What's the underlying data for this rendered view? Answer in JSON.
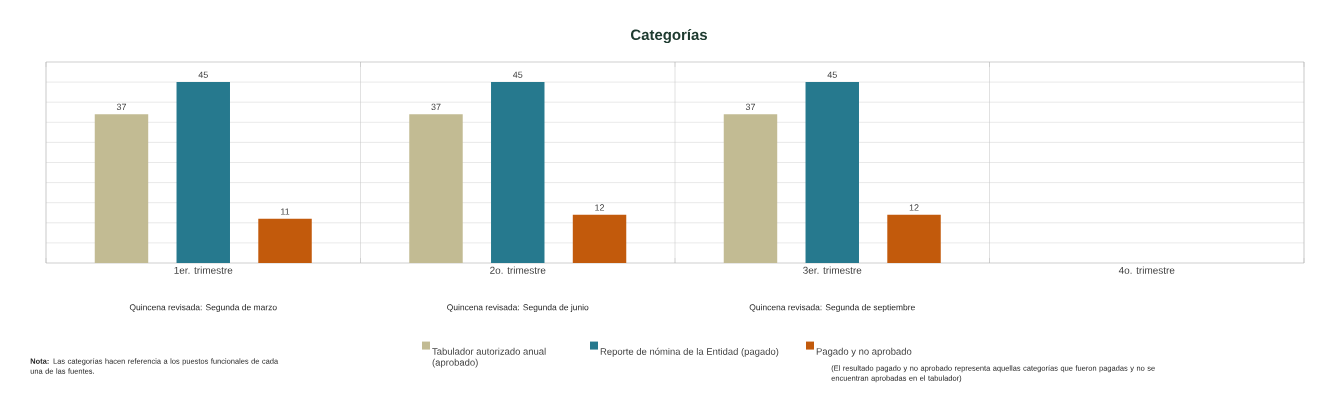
{
  "chart_data": {
    "type": "bar",
    "title": "Categorías",
    "categories": [
      "1er. trimestre",
      "2o. trimestre",
      "3er. trimestre",
      "4o. trimestre"
    ],
    "series": [
      {
        "name": "Tabulador autorizado anual (aprobado)",
        "color": "#c2bb93",
        "values": [
          37,
          37,
          37,
          null
        ]
      },
      {
        "name": "Reporte de nómina de la Entidad (pagado)",
        "color": "#26798e",
        "values": [
          45,
          45,
          45,
          null
        ]
      },
      {
        "name": "Pagado y no aprobado",
        "color": "#c25a0c",
        "values": [
          11,
          12,
          12,
          null
        ]
      }
    ],
    "ylim": [
      0,
      50
    ],
    "yticks": [
      {
        "value": 0,
        "label": null
      },
      {
        "value": 5,
        "label": null
      },
      {
        "value": 10,
        "label": null
      },
      {
        "value": 15,
        "label": null
      },
      {
        "value": 20,
        "label": null
      },
      {
        "value": 25,
        "label": null
      },
      {
        "value": 30,
        "label": null
      },
      {
        "value": 35,
        "label": null
      },
      {
        "value": 40,
        "label": null
      },
      {
        "value": 45,
        "label": null
      },
      {
        "value": 50,
        "label": null
      }
    ],
    "tick_labels": "x",
    "grid": true,
    "legend": "bottom",
    "data_labels": true,
    "annotations": [
      "Quincena revisada: Segunda de marzo",
      "Quincena revisada: Segunda de junio",
      "Quincena revisada: Segunda de septiembre",
      "**Nota:** Las categorías hacen referencia a los puestos funcionales de cada una de las fuentes.",
      "(El resultado pagado y no aprobado representa aquellas categorías que fueron pagadas y no se encuentran aprobadas en el tabulador)"
    ]
  }
}
